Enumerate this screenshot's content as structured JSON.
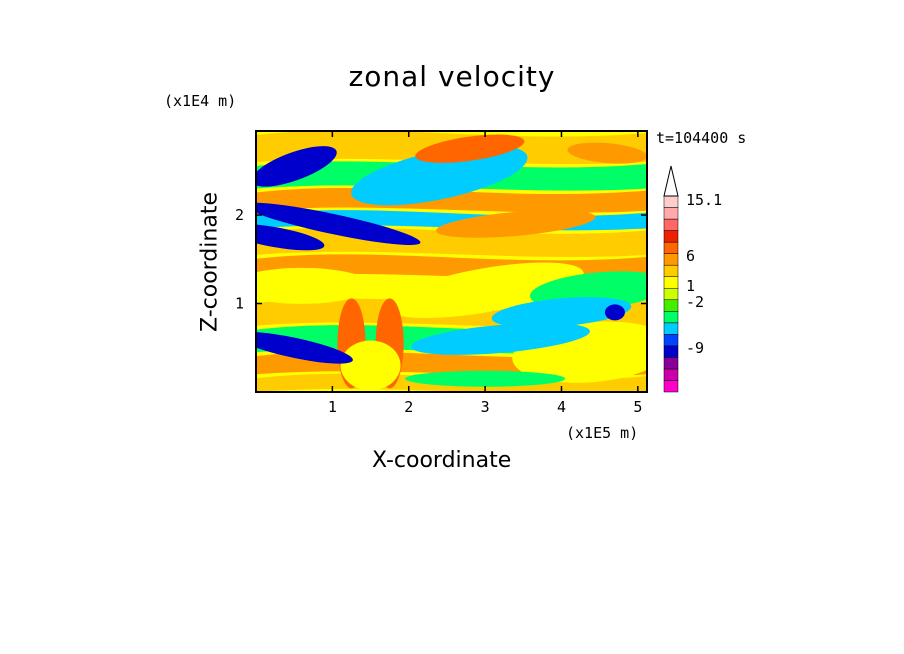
{
  "chart_data": {
    "type": "heatmap",
    "title": "zonal velocity",
    "xlabel": "X-coordinate",
    "ylabel": "Z-coordinate",
    "x_unit": "(x1E5 m)",
    "y_unit": "(x1E4 m)",
    "time_label": "t=104400 s",
    "xlim": [
      0,
      5.12
    ],
    "ylim": [
      0,
      2.95
    ],
    "x_ticks": [
      1,
      2,
      3,
      4,
      5
    ],
    "y_ticks": [
      1,
      2
    ],
    "colorbar": {
      "labeled_levels": [
        "15.1",
        "6",
        "1",
        "-2",
        "-9"
      ],
      "colors": [
        "#ff00cc",
        "#cc00aa",
        "#880099",
        "#0000cc",
        "#0044ff",
        "#00ccff",
        "#00ff66",
        "#44ee00",
        "#ccff00",
        "#ffff00",
        "#ffcc00",
        "#ff9900",
        "#ff6600",
        "#ee2200",
        "#ff6666",
        "#ffaaaa",
        "#ffcccc"
      ],
      "extend_max": true
    },
    "field_description_regions": [
      {
        "x": 2.4,
        "z": 2.45,
        "value": -9
      },
      {
        "x": 0.5,
        "z": 2.5,
        "value": -9
      },
      {
        "x": 0.3,
        "z": 1.75,
        "value": -9
      },
      {
        "x": 1.25,
        "z": 0.5,
        "value": 6
      },
      {
        "x": 1.75,
        "z": 0.5,
        "value": 6
      },
      {
        "x": 2.8,
        "z": 2.75,
        "value": 6
      },
      {
        "x": 4.5,
        "z": 0.5,
        "value": 1
      },
      {
        "x": 3.0,
        "z": 1.2,
        "value": 1
      },
      {
        "x": 0.5,
        "z": 1.2,
        "value": 1
      }
    ]
  }
}
